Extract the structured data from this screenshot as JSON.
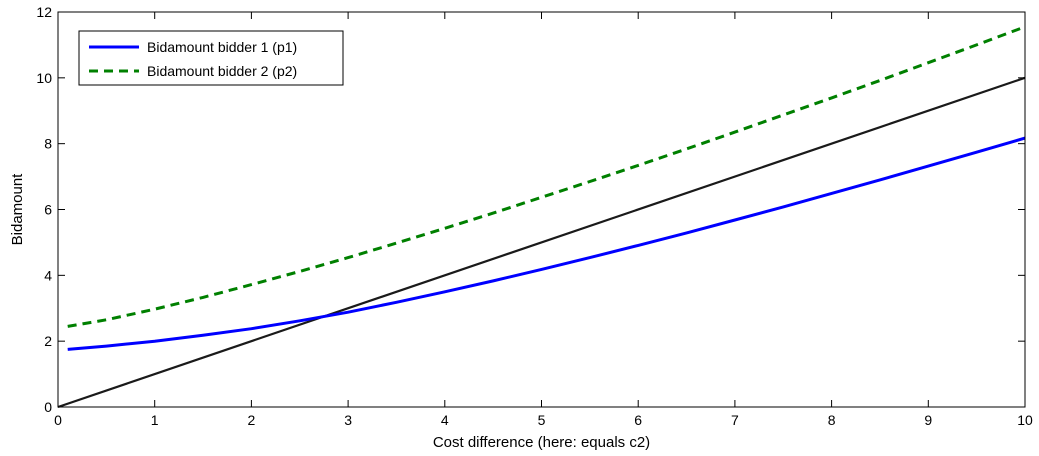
{
  "chart_data": {
    "type": "line",
    "title": "",
    "xlabel": "Cost difference (here: equals c2)",
    "ylabel": "Bidamount",
    "xlim": [
      0,
      10
    ],
    "ylim": [
      0,
      12
    ],
    "xticks": [
      0,
      1,
      2,
      3,
      4,
      5,
      6,
      7,
      8,
      9,
      10
    ],
    "yticks": [
      0,
      2,
      4,
      6,
      8,
      10,
      12
    ],
    "grid": false,
    "legend_position": "top-left",
    "series": [
      {
        "name": "Bidamount bidder 1 (p1)",
        "color": "#0000ff",
        "style": "solid",
        "in_legend": true,
        "x": [
          0.1,
          0.5,
          1,
          1.5,
          2,
          2.5,
          3,
          3.5,
          4,
          4.5,
          5,
          5.5,
          6,
          6.5,
          7,
          7.5,
          8,
          8.5,
          9,
          9.5,
          10
        ],
        "y": [
          1.75,
          1.85,
          2.0,
          2.18,
          2.38,
          2.62,
          2.88,
          3.18,
          3.5,
          3.83,
          4.18,
          4.54,
          4.91,
          5.29,
          5.68,
          6.08,
          6.49,
          6.9,
          7.32,
          7.74,
          8.17
        ]
      },
      {
        "name": "Bidamount bidder 2 (p2)",
        "color": "#008000",
        "style": "dashed",
        "in_legend": true,
        "x": [
          0.1,
          0.5,
          1,
          1.5,
          2,
          2.5,
          3,
          3.5,
          4,
          4.5,
          5,
          5.5,
          6,
          6.5,
          7,
          7.5,
          8,
          8.5,
          9,
          9.5,
          10
        ],
        "y": [
          2.45,
          2.65,
          2.97,
          3.33,
          3.72,
          4.12,
          4.54,
          4.98,
          5.43,
          5.89,
          6.37,
          6.85,
          7.34,
          7.84,
          8.35,
          8.87,
          9.39,
          9.92,
          10.46,
          11.0,
          11.55
        ]
      },
      {
        "name": "",
        "color": "#1a1a1a",
        "style": "solid",
        "in_legend": false,
        "x": [
          0,
          10
        ],
        "y": [
          0,
          10
        ]
      }
    ]
  }
}
